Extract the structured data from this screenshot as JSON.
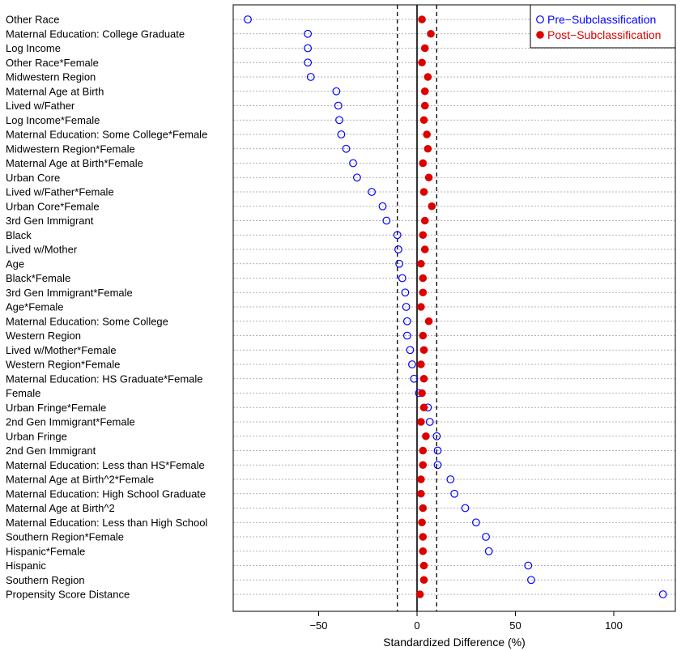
{
  "chart_data": {
    "type": "scatter",
    "title": "",
    "xlabel": "Standardized Difference (%)",
    "ylabel": "",
    "xlim": [
      -94,
      130
    ],
    "x_ticks": [
      -50,
      0,
      50,
      100
    ],
    "x_tick_labels": [
      "−50",
      "0",
      "50",
      "100"
    ],
    "reference_lines": [
      {
        "x": -10,
        "style": "dashed"
      },
      {
        "x": 0,
        "style": "solid"
      },
      {
        "x": 10,
        "style": "dashed"
      }
    ],
    "grid": "horizontal dotted",
    "legend_position": "top-right",
    "categories": [
      "Other Race",
      "Maternal Education: College Graduate",
      "Log Income",
      "Other Race*Female",
      "Midwestern Region",
      "Maternal Age at Birth",
      "Lived w/Father",
      "Log Income*Female",
      "Maternal Education: Some College*Female",
      "Midwestern Region*Female",
      "Maternal Age at Birth*Female",
      "Urban Core",
      "Lived w/Father*Female",
      "Urban Core*Female",
      "3rd Gen Immigrant",
      "Black",
      "Lived w/Mother",
      "Age",
      "Black*Female",
      "3rd Gen Immigrant*Female",
      "Age*Female",
      "Maternal Education: Some College",
      "Western Region",
      "Lived w/Mother*Female",
      "Western Region*Female",
      "Maternal Education: HS Graduate*Female",
      "Female",
      "Urban Fringe*Female",
      "2nd Gen Immigrant*Female",
      "Urban Fringe",
      "2nd Gen Immigrant",
      "Maternal Education: Less than HS*Female",
      "Maternal Age at Birth^2*Female",
      "Maternal Education: High School Graduate",
      "Maternal Age at Birth^2",
      "Maternal Education: Less than High School",
      "Southern Region*Female",
      "Hispanic*Female",
      "Hispanic",
      "Southern Region",
      "Propensity Score Distance"
    ],
    "series": [
      {
        "name": "Pre−Subclassification",
        "marker": "open-circle",
        "color": "#0000ff",
        "values": [
          -86,
          -55.5,
          -55.5,
          -55.5,
          -54,
          -41,
          -40,
          -39.5,
          -38.5,
          -36,
          -32.5,
          -30.5,
          -23,
          -17.5,
          -15.5,
          -10,
          -9.5,
          -9,
          -7.5,
          -6,
          -5.5,
          -5,
          -5,
          -3.5,
          -2.5,
          -1.5,
          1,
          5.5,
          6.5,
          10,
          10.5,
          10.5,
          17,
          19,
          24.5,
          30,
          35,
          36.5,
          56.5,
          58,
          125
        ]
      },
      {
        "name": "Post−Subclassification",
        "marker": "filled-circle",
        "color": "#dd0000",
        "values": [
          2.5,
          7,
          4,
          2.5,
          5.5,
          4,
          4,
          3.5,
          5,
          5.5,
          3,
          6,
          3.5,
          7.5,
          4,
          3,
          4,
          2,
          3,
          3,
          2,
          6,
          3,
          3.5,
          2,
          3.5,
          2.5,
          3.5,
          2,
          4.5,
          3,
          3,
          2,
          2,
          3,
          2.5,
          3,
          3,
          3.5,
          3.5,
          1.5
        ]
      }
    ]
  },
  "colors": {
    "pre": "#0000ff",
    "post": "#dd0000",
    "axis": "#000000",
    "grid": "#9a9a9a"
  }
}
